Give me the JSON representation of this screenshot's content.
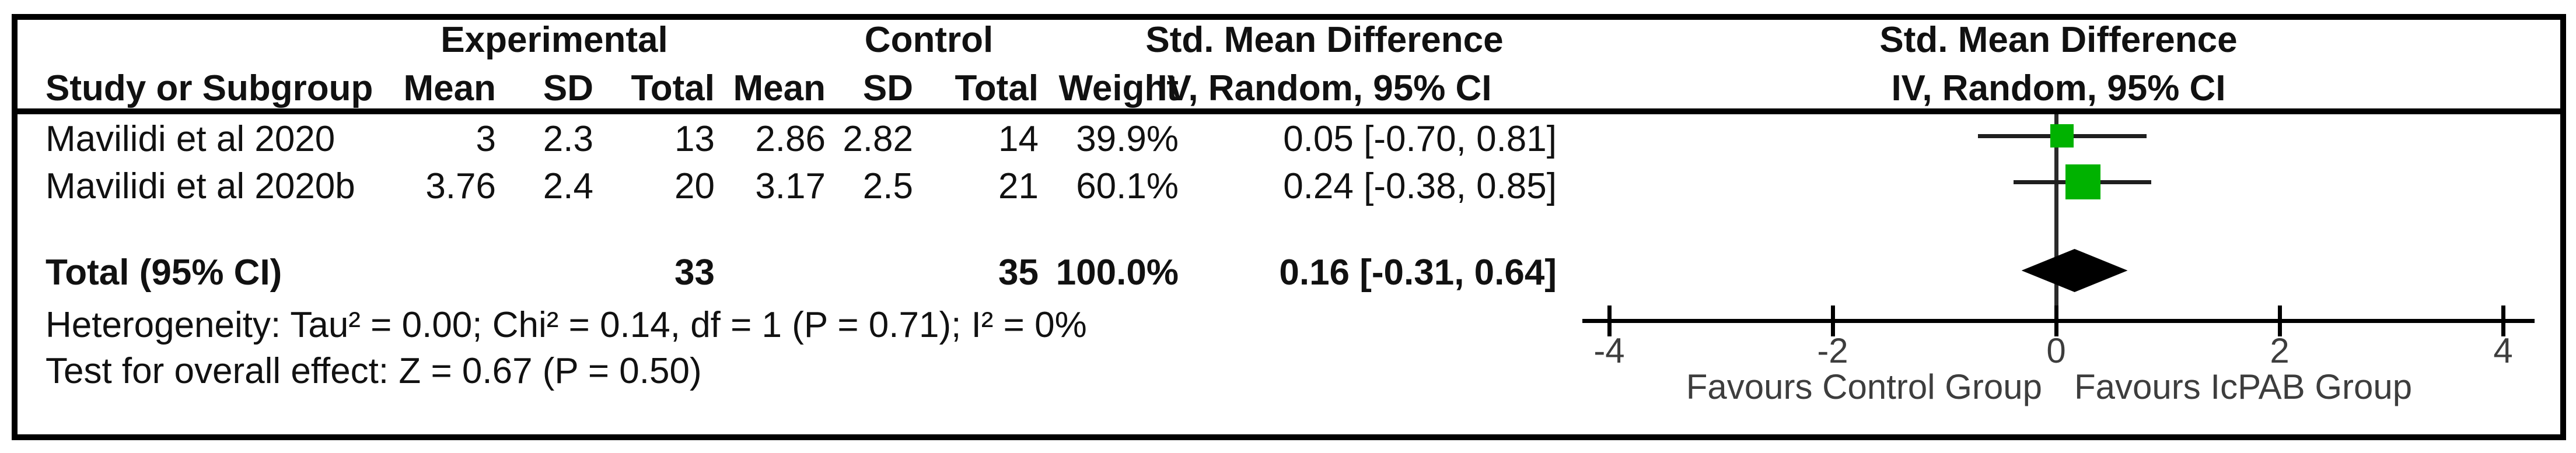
{
  "table": {
    "group_headers": {
      "experimental": "Experimental",
      "control": "Control",
      "smd_text_col": "Std. Mean Difference",
      "smd_plot_col": "Std. Mean Difference"
    },
    "col_headers": {
      "study": "Study or Subgroup",
      "mean1": "Mean",
      "sd1": "SD",
      "total1": "Total",
      "mean2": "Mean",
      "sd2": "SD",
      "total2": "Total",
      "weight": "Weight",
      "ci_text_col": "IV, Random, 95% CI",
      "ci_plot_col": "IV, Random, 95% CI"
    },
    "rows": [
      {
        "study": "Mavilidi et al 2020",
        "mean1": "3",
        "sd1": "2.3",
        "total1": "13",
        "mean2": "2.86",
        "sd2": "2.82",
        "total2": "14",
        "weight": "39.9%",
        "ci": "0.05 [-0.70, 0.81]"
      },
      {
        "study": "Mavilidi et al 2020b",
        "mean1": "3.76",
        "sd1": "2.4",
        "total1": "20",
        "mean2": "3.17",
        "sd2": "2.5",
        "total2": "21",
        "weight": "60.1%",
        "ci": "0.24 [-0.38, 0.85]"
      }
    ],
    "total_row": {
      "label": "Total (95% CI)",
      "total1": "33",
      "total2": "35",
      "weight": "100.0%",
      "ci": "0.16 [-0.31, 0.64]"
    },
    "footnotes": {
      "heterogeneity": "Heterogeneity: Tau² = 0.00; Chi² = 0.14, df = 1 (P = 0.71); I² = 0%",
      "overall_effect": "Test for overall effect: Z = 0.67 (P = 0.50)"
    }
  },
  "chart_data": {
    "type": "forest",
    "effect_measure": "Std. Mean Difference, IV, Random, 95% CI",
    "axis": {
      "min": -4,
      "max": 4,
      "ticks": [
        -4,
        -2,
        0,
        2,
        4
      ]
    },
    "studies": [
      {
        "name": "Mavilidi et al 2020",
        "smd": 0.05,
        "ci_low": -0.7,
        "ci_high": 0.81,
        "weight_pct": 39.9
      },
      {
        "name": "Mavilidi et al 2020b",
        "smd": 0.24,
        "ci_low": -0.38,
        "ci_high": 0.85,
        "weight_pct": 60.1
      }
    ],
    "total": {
      "label": "Total (95% CI)",
      "smd": 0.16,
      "ci_low": -0.31,
      "ci_high": 0.64,
      "weight_pct": 100.0
    },
    "x_labels": {
      "left": "Favours Control Group",
      "right": "Favours IcPAB Group"
    },
    "colors": {
      "marker": "#00B200",
      "diamond": "#000000",
      "line": "#1f1f1f",
      "axis": "#000000"
    }
  }
}
